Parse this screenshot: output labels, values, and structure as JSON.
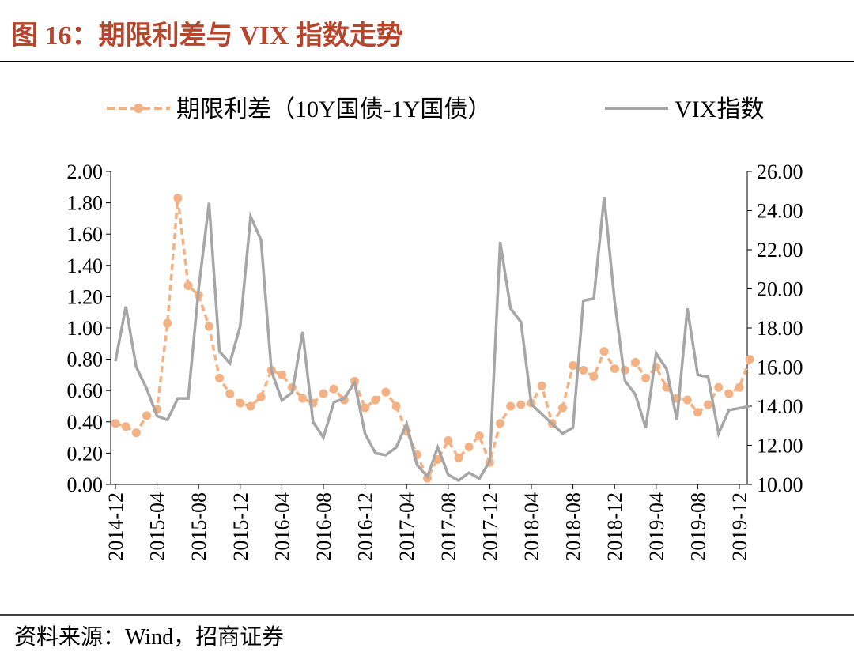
{
  "chart_data": {
    "type": "line",
    "title": "图 16：期限利差与 VIX 指数走势",
    "source": "资料来源：Wind，招商证券",
    "categories": [
      "2014-12",
      null,
      null,
      null,
      "2015-04",
      null,
      null,
      null,
      "2015-08",
      null,
      null,
      null,
      "2015-12",
      null,
      null,
      null,
      "2016-04",
      null,
      null,
      null,
      "2016-08",
      null,
      null,
      null,
      "2016-12",
      null,
      null,
      null,
      "2017-04",
      null,
      null,
      null,
      "2017-08",
      null,
      null,
      null,
      "2017-12",
      null,
      null,
      null,
      "2018-04",
      null,
      null,
      null,
      "2018-08",
      null,
      null,
      null,
      "2018-12",
      null,
      null,
      null,
      "2019-04",
      null,
      null,
      null,
      "2019-08",
      null,
      null,
      null,
      "2019-12",
      null
    ],
    "series": [
      {
        "name": "期限利差（10Y国债-1Y国债）",
        "color": "#f4b183",
        "axis": "y",
        "values": [
          0.39,
          0.37,
          0.33,
          0.44,
          0.48,
          1.03,
          1.83,
          1.27,
          1.21,
          1.01,
          0.68,
          0.58,
          0.52,
          0.5,
          0.56,
          0.73,
          0.7,
          0.62,
          0.55,
          0.52,
          0.58,
          0.61,
          0.54,
          0.66,
          0.49,
          0.54,
          0.59,
          0.5,
          0.34,
          0.19,
          0.04,
          0.16,
          0.28,
          0.17,
          0.24,
          0.31,
          0.14,
          0.39,
          0.5,
          0.51,
          0.52,
          0.63,
          0.39,
          0.49,
          0.76,
          0.73,
          0.69,
          0.85,
          0.74,
          0.73,
          0.78,
          0.68,
          0.75,
          0.62,
          0.55,
          0.54,
          0.46,
          0.51,
          0.62,
          0.58,
          0.62,
          0.8
        ]
      },
      {
        "name": "VIX指数",
        "color": "#a6a6a6",
        "axis": "y2",
        "values": [
          16.3,
          19.1,
          16.0,
          14.9,
          13.5,
          13.3,
          14.4,
          14.4,
          20.0,
          24.4,
          16.8,
          16.2,
          18.1,
          23.7,
          22.5,
          15.8,
          14.3,
          14.7,
          17.8,
          13.2,
          12.4,
          14.2,
          14.4,
          15.2,
          12.6,
          11.6,
          11.5,
          11.9,
          13.1,
          11.0,
          10.4,
          11.9,
          10.5,
          10.2,
          10.6,
          10.3,
          11.2,
          22.4,
          19.0,
          18.3,
          14.1,
          13.6,
          13.1,
          12.6,
          12.9,
          19.4,
          19.5,
          24.7,
          19.4,
          15.3,
          14.6,
          12.9,
          16.7,
          15.9,
          13.3,
          19.0,
          15.6,
          15.5,
          12.6,
          13.8,
          13.9,
          14.0
        ]
      }
    ],
    "ylim": [
      0,
      2
    ],
    "yticks": [
      {
        "value": 0,
        "label": "0.00"
      },
      {
        "value": 0.2,
        "label": "0.20"
      },
      {
        "value": 0.4,
        "label": "0.40"
      },
      {
        "value": 0.6,
        "label": "0.60"
      },
      {
        "value": 0.8,
        "label": "0.80"
      },
      {
        "value": 1,
        "label": "1.00"
      },
      {
        "value": 1.2,
        "label": "1.20"
      },
      {
        "value": 1.4,
        "label": "1.40"
      },
      {
        "value": 1.6,
        "label": "1.60"
      },
      {
        "value": 1.8,
        "label": "1.80"
      },
      {
        "value": 2,
        "label": "2.00"
      }
    ],
    "y2lim": [
      10,
      26
    ],
    "y2ticks": [
      {
        "value": 10,
        "label": "10.00"
      },
      {
        "value": 12,
        "label": "12.00"
      },
      {
        "value": 14,
        "label": "14.00"
      },
      {
        "value": 16,
        "label": "16.00"
      },
      {
        "value": 18,
        "label": "18.00"
      },
      {
        "value": 20,
        "label": "20.00"
      },
      {
        "value": 22,
        "label": "22.00"
      },
      {
        "value": 24,
        "label": "24.00"
      },
      {
        "value": 26,
        "label": "26.00"
      }
    ],
    "grid": false,
    "legend": "top"
  }
}
